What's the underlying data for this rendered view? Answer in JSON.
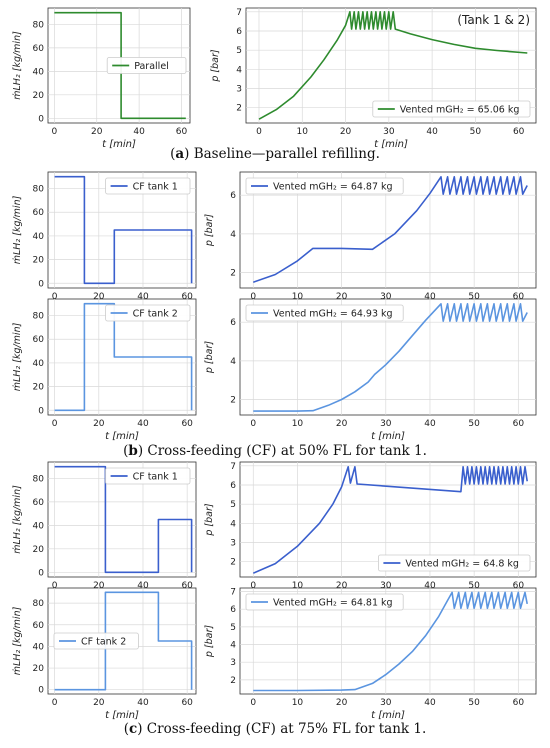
{
  "captions": {
    "a": {
      "label": "a",
      "text": ") Baseline—parallel refilling."
    },
    "b": {
      "label": "b",
      "text": ") Cross-feeding (CF) at 50% FL for tank 1."
    },
    "c": {
      "label": "c",
      "text": ") Cross-feeding (CF) at 75% FL for tank 1."
    }
  },
  "colors": {
    "parallel": "#2e8b2e",
    "tank1": "#3a5fcd",
    "tank2": "#5b95e0"
  },
  "chart_data": [
    {
      "id": "a-flow",
      "type": "line",
      "xlabel": "t [min]",
      "ylabel": "ṁ_LH₂ [kg/min]",
      "xlim": [
        -3,
        64
      ],
      "ylim": [
        -4,
        94
      ],
      "xticks": [
        "0",
        "20",
        "40",
        "60"
      ],
      "yticks": [
        "0",
        "20",
        "40",
        "60",
        "80"
      ],
      "xtick_values": [
        0,
        20,
        40,
        60
      ],
      "ytick_values": [
        0,
        20,
        40,
        60,
        80
      ],
      "grid": true,
      "legend_position": "center-right",
      "series": [
        {
          "name": "Parallel",
          "color": "parallel",
          "x": [
            0,
            31.5,
            31.5,
            62
          ],
          "y": [
            90,
            90,
            0,
            0
          ]
        }
      ]
    },
    {
      "id": "a-pressure",
      "type": "line",
      "xlabel": "t [min]",
      "ylabel": "p [bar]",
      "xlim": [
        -3,
        64
      ],
      "ylim": [
        1.2,
        7.2
      ],
      "xticks": [
        "0",
        "10",
        "20",
        "30",
        "40",
        "50",
        "60"
      ],
      "yticks": [
        "2",
        "3",
        "4",
        "5",
        "6",
        "7"
      ],
      "xtick_values": [
        0,
        10,
        20,
        30,
        40,
        50,
        60
      ],
      "ytick_values": [
        2,
        3,
        4,
        5,
        6,
        7
      ],
      "grid": true,
      "legend_position": "lower-right",
      "annotation": "(Tank 1 & 2)",
      "series": [
        {
          "name": "Vented m_GH₂ = 65.06 kg",
          "color": "parallel",
          "x": [
            0,
            4,
            8,
            12,
            15,
            18,
            20,
            21,
            21.4,
            22,
            22.4,
            23,
            23.4,
            24,
            24.4,
            25,
            25.4,
            26,
            26.4,
            27,
            27.4,
            28,
            28.4,
            29,
            29.4,
            30,
            30.4,
            31,
            31.5,
            35,
            40,
            45,
            50,
            55,
            62
          ],
          "y": [
            1.4,
            1.9,
            2.6,
            3.6,
            4.5,
            5.5,
            6.3,
            7.0,
            6.1,
            7.0,
            6.1,
            7.0,
            6.1,
            7.0,
            6.1,
            7.0,
            6.1,
            7.0,
            6.1,
            7.0,
            6.1,
            7.0,
            6.1,
            7.0,
            6.1,
            7.0,
            6.1,
            7.0,
            6.1,
            5.85,
            5.55,
            5.3,
            5.1,
            4.98,
            4.85
          ]
        }
      ]
    },
    {
      "id": "b-flow-1",
      "type": "line",
      "xlabel": "",
      "ylabel": "",
      "xlim": [
        -3,
        64
      ],
      "ylim": [
        -4,
        94
      ],
      "xticks": [
        "0",
        "20",
        "40",
        "60"
      ],
      "yticks": [
        "0",
        "20",
        "40",
        "60",
        "80"
      ],
      "xtick_values": [
        0,
        20,
        40,
        60
      ],
      "ytick_values": [
        0,
        20,
        40,
        60,
        80
      ],
      "grid": true,
      "legend_position": "top-right",
      "series": [
        {
          "name": "CF tank 1",
          "color": "tank1",
          "x": [
            0,
            13.5,
            13.5,
            27,
            27,
            62,
            62
          ],
          "y": [
            90,
            90,
            0,
            0,
            45,
            45,
            0
          ]
        }
      ]
    },
    {
      "id": "b-pressure-1",
      "type": "line",
      "xlabel": "",
      "ylabel": "p [bar]",
      "xlim": [
        -3,
        64
      ],
      "ylim": [
        1.2,
        7.2
      ],
      "xticks": [
        "0",
        "10",
        "20",
        "30",
        "40",
        "50",
        "60"
      ],
      "yticks": [
        "2",
        "4",
        "6"
      ],
      "xtick_values": [
        0,
        10,
        20,
        30,
        40,
        50,
        60
      ],
      "ytick_values": [
        2,
        4,
        6
      ],
      "grid": true,
      "legend_position": "top-left",
      "series": [
        {
          "name": "Vented m_GH₂ = 64.87 kg",
          "color": "tank1",
          "x": [
            0,
            5,
            10,
            13.5,
            20,
            27,
            32,
            37,
            40,
            42.5,
            43,
            44,
            44.5,
            45.5,
            46,
            47,
            47.5,
            48.5,
            49,
            50,
            50.5,
            51.5,
            52,
            53,
            53.5,
            54.5,
            55,
            56,
            56.5,
            57.5,
            58,
            59,
            59.5,
            60.5,
            61,
            62
          ],
          "y": [
            1.5,
            1.9,
            2.6,
            3.25,
            3.25,
            3.2,
            4.0,
            5.2,
            6.1,
            6.95,
            6.05,
            6.95,
            6.05,
            6.95,
            6.05,
            6.95,
            6.05,
            6.95,
            6.05,
            6.95,
            6.05,
            6.95,
            6.05,
            6.95,
            6.05,
            6.95,
            6.05,
            6.95,
            6.05,
            6.95,
            6.05,
            6.95,
            6.05,
            6.95,
            6.05,
            6.5
          ]
        }
      ]
    },
    {
      "id": "b-flow-2",
      "type": "line",
      "xlabel": "t [min]",
      "ylabel": "ṁ_LH₂ [kg/min]",
      "xlim": [
        -3,
        64
      ],
      "ylim": [
        -4,
        94
      ],
      "xticks": [
        "0",
        "20",
        "40",
        "60"
      ],
      "yticks": [
        "0",
        "20",
        "40",
        "60",
        "80"
      ],
      "xtick_values": [
        0,
        20,
        40,
        60
      ],
      "ytick_values": [
        0,
        20,
        40,
        60,
        80
      ],
      "grid": true,
      "legend_position": "top-right",
      "series": [
        {
          "name": "CF tank 2",
          "color": "tank2",
          "x": [
            0,
            13.5,
            13.5,
            27,
            27,
            62,
            62
          ],
          "y": [
            0,
            0,
            90,
            90,
            45,
            45,
            0
          ]
        }
      ]
    },
    {
      "id": "b-pressure-2",
      "type": "line",
      "xlabel": "t [min]",
      "ylabel": "p [bar]",
      "xlim": [
        -3,
        64
      ],
      "ylim": [
        1.2,
        7.2
      ],
      "xticks": [
        "0",
        "10",
        "20",
        "30",
        "40",
        "50",
        "60"
      ],
      "yticks": [
        "2",
        "4",
        "6"
      ],
      "xtick_values": [
        0,
        10,
        20,
        30,
        40,
        50,
        60
      ],
      "ytick_values": [
        2,
        4,
        6
      ],
      "grid": true,
      "legend_position": "top-left",
      "series": [
        {
          "name": "Vented m_GH₂ = 64.93 kg",
          "color": "tank2",
          "x": [
            0,
            10,
            13.5,
            17,
            20,
            23,
            26,
            27.5,
            30,
            33,
            36,
            39,
            42.5,
            43,
            44,
            44.5,
            45.5,
            46,
            47,
            47.5,
            48.5,
            49,
            50,
            50.5,
            51.5,
            52,
            53,
            53.5,
            54.5,
            55,
            56,
            56.5,
            57.5,
            58,
            59,
            59.5,
            60.5,
            61,
            62
          ],
          "y": [
            1.4,
            1.4,
            1.42,
            1.7,
            2.0,
            2.4,
            2.9,
            3.3,
            3.8,
            4.5,
            5.3,
            6.1,
            6.95,
            6.05,
            6.95,
            6.05,
            6.95,
            6.05,
            6.95,
            6.05,
            6.95,
            6.05,
            6.95,
            6.05,
            6.95,
            6.05,
            6.95,
            6.05,
            6.95,
            6.05,
            6.95,
            6.05,
            6.95,
            6.05,
            6.95,
            6.05,
            6.95,
            6.05,
            6.5
          ]
        }
      ]
    },
    {
      "id": "c-flow-1",
      "type": "line",
      "xlabel": "",
      "ylabel": "ṁ_LH₂ [kg/min]",
      "xlim": [
        -3,
        64
      ],
      "ylim": [
        -4,
        94
      ],
      "xticks": [
        "0",
        "20",
        "40",
        "60"
      ],
      "yticks": [
        "0",
        "20",
        "40",
        "60",
        "80"
      ],
      "xtick_values": [
        0,
        20,
        40,
        60
      ],
      "ytick_values": [
        0,
        20,
        40,
        60,
        80
      ],
      "grid": true,
      "legend_position": "top-right",
      "series": [
        {
          "name": "CF tank 1",
          "color": "tank1",
          "x": [
            0,
            23,
            23,
            47,
            47,
            62,
            62
          ],
          "y": [
            90,
            90,
            0,
            0,
            45,
            45,
            0
          ]
        }
      ]
    },
    {
      "id": "c-pressure-1",
      "type": "line",
      "xlabel": "",
      "ylabel": "p [bar]",
      "xlim": [
        -3,
        64
      ],
      "ylim": [
        1.2,
        7.2
      ],
      "xticks": [
        "0",
        "10",
        "20",
        "30",
        "40",
        "50",
        "60"
      ],
      "yticks": [
        "2",
        "3",
        "4",
        "5",
        "6",
        "7"
      ],
      "xtick_values": [
        0,
        10,
        20,
        30,
        40,
        50,
        60
      ],
      "ytick_values": [
        2,
        3,
        4,
        5,
        6,
        7
      ],
      "grid": true,
      "legend_position": "lower-right",
      "series": [
        {
          "name": "Vented m_GH₂ = 64.8 kg",
          "color": "tank1",
          "x": [
            0,
            5,
            10,
            15,
            18,
            20,
            21.5,
            22,
            23,
            23.5,
            47,
            47.5,
            48,
            48.5,
            49,
            49.5,
            50,
            50.5,
            51,
            51.5,
            52,
            52.5,
            53,
            53.5,
            54,
            54.5,
            55,
            55.5,
            56,
            56.5,
            57,
            57.5,
            58,
            58.5,
            59,
            59.5,
            60,
            60.5,
            61,
            61.5,
            62
          ],
          "y": [
            1.4,
            1.9,
            2.8,
            4.0,
            5.0,
            5.9,
            6.95,
            6.1,
            6.95,
            6.05,
            5.65,
            6.95,
            6.05,
            6.95,
            6.05,
            6.95,
            6.05,
            6.95,
            6.05,
            6.95,
            6.05,
            6.95,
            6.05,
            6.95,
            6.05,
            6.95,
            6.05,
            6.95,
            6.05,
            6.95,
            6.05,
            6.95,
            6.05,
            6.95,
            6.05,
            6.95,
            6.05,
            6.95,
            6.05,
            6.95,
            6.2
          ]
        }
      ]
    },
    {
      "id": "c-flow-2",
      "type": "line",
      "xlabel": "t [min]",
      "ylabel": "ṁ_LH₂ [kg/min]",
      "xlim": [
        -3,
        64
      ],
      "ylim": [
        -4,
        94
      ],
      "xticks": [
        "0",
        "20",
        "40",
        "60"
      ],
      "yticks": [
        "0",
        "20",
        "40",
        "60",
        "80"
      ],
      "xtick_values": [
        0,
        20,
        40,
        60
      ],
      "ytick_values": [
        0,
        20,
        40,
        60,
        80
      ],
      "grid": true,
      "legend_position": "center-left",
      "series": [
        {
          "name": "CF tank 2",
          "color": "tank2",
          "x": [
            0,
            23,
            23,
            47,
            47,
            62,
            62
          ],
          "y": [
            0,
            0,
            90,
            90,
            45,
            45,
            0
          ]
        }
      ]
    },
    {
      "id": "c-pressure-2",
      "type": "line",
      "xlabel": "t [min]",
      "ylabel": "p [bar]",
      "xlim": [
        -3,
        64
      ],
      "ylim": [
        1.2,
        7.2
      ],
      "xticks": [
        "0",
        "10",
        "20",
        "30",
        "40",
        "50",
        "60"
      ],
      "yticks": [
        "2",
        "3",
        "4",
        "5",
        "6",
        "7"
      ],
      "xtick_values": [
        0,
        10,
        20,
        30,
        40,
        50,
        60
      ],
      "ytick_values": [
        2,
        3,
        4,
        5,
        6,
        7
      ],
      "grid": true,
      "legend_position": "top-left",
      "series": [
        {
          "name": "Vented m_GH₂ = 64.81 kg",
          "color": "tank2",
          "x": [
            0,
            10,
            20,
            23,
            27,
            30,
            33,
            36,
            39,
            42,
            44,
            45,
            45.5,
            46.5,
            47,
            48,
            48.5,
            49.5,
            50,
            51,
            51.5,
            52.5,
            53,
            54,
            54.5,
            55.5,
            56,
            57,
            57.5,
            58.5,
            59,
            60,
            60.5,
            61.5,
            62
          ],
          "y": [
            1.4,
            1.4,
            1.42,
            1.45,
            1.8,
            2.3,
            2.9,
            3.6,
            4.5,
            5.6,
            6.5,
            6.95,
            6.05,
            6.95,
            6.05,
            6.95,
            6.05,
            6.95,
            6.05,
            6.95,
            6.05,
            6.95,
            6.05,
            6.95,
            6.05,
            6.95,
            6.05,
            6.95,
            6.05,
            6.95,
            6.05,
            6.95,
            6.05,
            6.95,
            6.3
          ]
        }
      ]
    }
  ]
}
